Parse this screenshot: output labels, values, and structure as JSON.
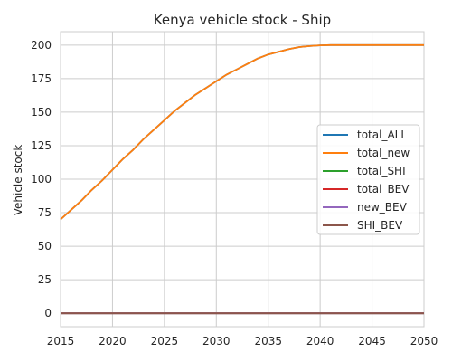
{
  "chart_data": {
    "type": "line",
    "title": "Kenya vehicle stock - Ship",
    "xlabel": "",
    "ylabel": "Vehicle stock",
    "xlim": [
      2015,
      2050
    ],
    "ylim": [
      -10,
      210
    ],
    "xticks": [
      2015,
      2020,
      2025,
      2030,
      2035,
      2040,
      2045,
      2050
    ],
    "yticks": [
      0,
      25,
      50,
      75,
      100,
      125,
      150,
      175,
      200
    ],
    "grid": true,
    "legend_position": "right",
    "x": [
      2015,
      2016,
      2017,
      2018,
      2019,
      2020,
      2021,
      2022,
      2023,
      2024,
      2025,
      2026,
      2027,
      2028,
      2029,
      2030,
      2031,
      2032,
      2033,
      2034,
      2035,
      2036,
      2037,
      2038,
      2039,
      2040,
      2041,
      2042,
      2043,
      2044,
      2045,
      2046,
      2047,
      2048,
      2049,
      2050
    ],
    "series": [
      {
        "name": "total_ALL",
        "color": "#1f77b4",
        "values": [
          70,
          77,
          84,
          92,
          99,
          107,
          115,
          122,
          130,
          137,
          144,
          151,
          157,
          163,
          168,
          173,
          178,
          182,
          186,
          190,
          193,
          195,
          197,
          198.5,
          199.3,
          199.8,
          200,
          200,
          200,
          200,
          200,
          200,
          200,
          200,
          200,
          200
        ]
      },
      {
        "name": "total_new",
        "color": "#ff7f0e",
        "values": [
          70,
          77,
          84,
          92,
          99,
          107,
          115,
          122,
          130,
          137,
          144,
          151,
          157,
          163,
          168,
          173,
          178,
          182,
          186,
          190,
          193,
          195,
          197,
          198.5,
          199.3,
          199.8,
          200,
          200,
          200,
          200,
          200,
          200,
          200,
          200,
          200,
          200
        ]
      },
      {
        "name": "total_SHI",
        "color": "#2ca02c",
        "values": [
          0,
          0,
          0,
          0,
          0,
          0,
          0,
          0,
          0,
          0,
          0,
          0,
          0,
          0,
          0,
          0,
          0,
          0,
          0,
          0,
          0,
          0,
          0,
          0,
          0,
          0,
          0,
          0,
          0,
          0,
          0,
          0,
          0,
          0,
          0,
          0
        ]
      },
      {
        "name": "total_BEV",
        "color": "#d62728",
        "values": [
          0,
          0,
          0,
          0,
          0,
          0,
          0,
          0,
          0,
          0,
          0,
          0,
          0,
          0,
          0,
          0,
          0,
          0,
          0,
          0,
          0,
          0,
          0,
          0,
          0,
          0,
          0,
          0,
          0,
          0,
          0,
          0,
          0,
          0,
          0,
          0
        ]
      },
      {
        "name": "new_BEV",
        "color": "#9467bd",
        "values": [
          0,
          0,
          0,
          0,
          0,
          0,
          0,
          0,
          0,
          0,
          0,
          0,
          0,
          0,
          0,
          0,
          0,
          0,
          0,
          0,
          0,
          0,
          0,
          0,
          0,
          0,
          0,
          0,
          0,
          0,
          0,
          0,
          0,
          0,
          0,
          0
        ]
      },
      {
        "name": "SHI_BEV",
        "color": "#8c564b",
        "values": [
          0,
          0,
          0,
          0,
          0,
          0,
          0,
          0,
          0,
          0,
          0,
          0,
          0,
          0,
          0,
          0,
          0,
          0,
          0,
          0,
          0,
          0,
          0,
          0,
          0,
          0,
          0,
          0,
          0,
          0,
          0,
          0,
          0,
          0,
          0,
          0
        ]
      }
    ]
  }
}
